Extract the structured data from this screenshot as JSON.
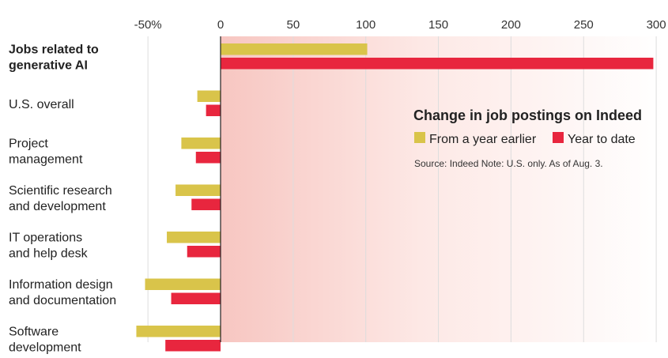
{
  "chart_data": {
    "type": "bar",
    "orientation": "horizontal",
    "title": "Change in job postings on Indeed",
    "source": "Source: Indeed   Note: U.S. only. As of Aug. 3.",
    "xlim": [
      -55,
      300
    ],
    "xticks": [
      -50,
      0,
      50,
      100,
      150,
      200,
      250,
      300
    ],
    "xtick_labels": [
      "-50%",
      "0",
      "50",
      "100",
      "150",
      "200",
      "250",
      "300"
    ],
    "categories": [
      [
        "Jobs related to",
        "generative AI"
      ],
      [
        "U.S. overall"
      ],
      [
        "Project",
        "management"
      ],
      [
        "Scientific research",
        "and development"
      ],
      [
        "IT operations",
        "and help desk"
      ],
      [
        "Information design",
        "and documentation"
      ],
      [
        "Software",
        "development"
      ]
    ],
    "highlight_category": 0,
    "series": [
      {
        "name": "From a year earlier",
        "color": "#d9c44a",
        "values": [
          101,
          -16,
          -27,
          -31,
          -37,
          -52,
          -58
        ]
      },
      {
        "name": "Year to date",
        "color": "#e8263e",
        "values": [
          298,
          -10,
          -17,
          -20,
          -23,
          -34,
          -38
        ]
      }
    ],
    "legend_position": "right"
  }
}
